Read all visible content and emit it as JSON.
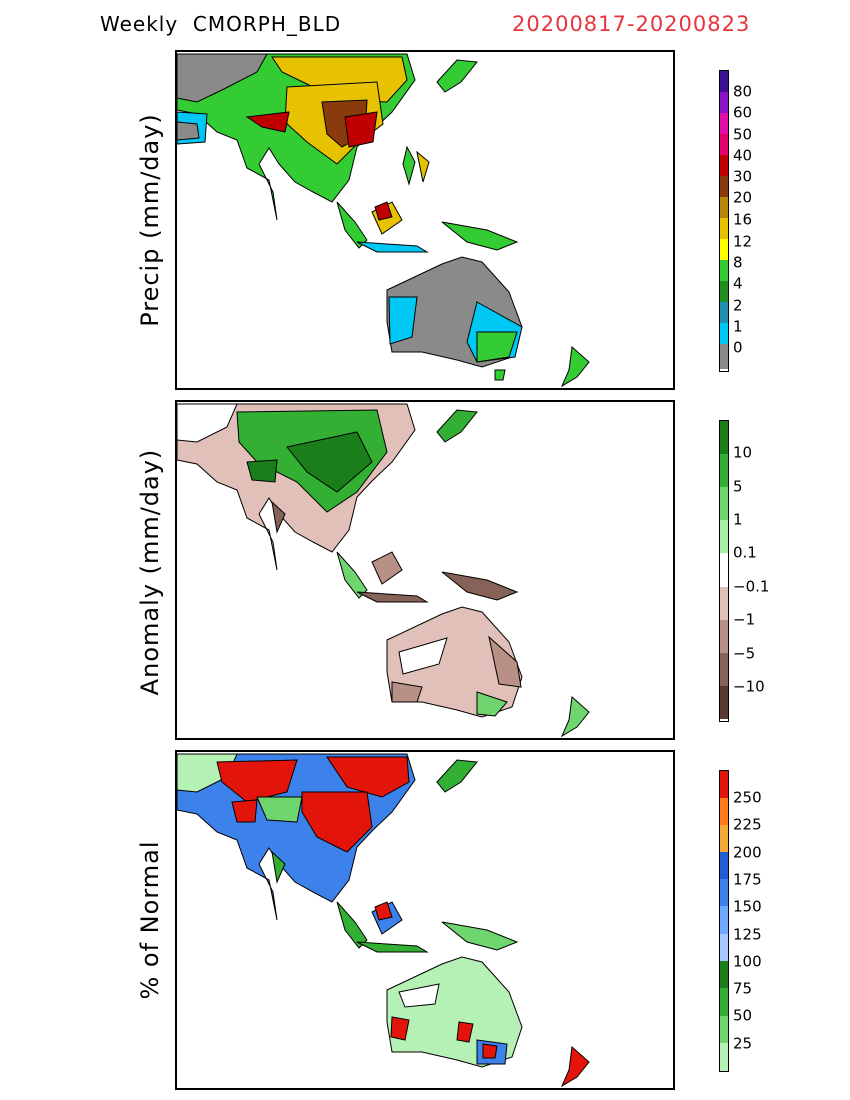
{
  "header": {
    "product": "Weekly  CMORPH_BLD",
    "period": "20200817-20200823",
    "period_color": "#e8343b"
  },
  "panels": [
    {
      "ylabel": "Precip  (mm/day)",
      "tick_labels": [
        "80",
        "60",
        "50",
        "40",
        "30",
        "20",
        "16",
        "12",
        "8",
        "4",
        "2",
        "1",
        "0"
      ],
      "colors": [
        "#3d0f94",
        "#8d11c8",
        "#e10fa5",
        "#e3006a",
        "#c00000",
        "#8a3b0b",
        "#b8860b",
        "#e6c200",
        "#ffff00",
        "#33cc33",
        "#1f8f1f",
        "#1f8fb3",
        "#00c8f5",
        "#8a8a8a"
      ]
    },
    {
      "ylabel": "Anomaly  (mm/day)",
      "tick_labels": [
        "10",
        "5",
        "1",
        "0.1",
        "−0.1",
        "−1",
        "−5",
        "−10"
      ],
      "colors": [
        "#1a7f1a",
        "#33b033",
        "#6fd66f",
        "#a8eea8",
        "#ffffff",
        "#e0c0b8",
        "#b89086",
        "#876258",
        "#5a3a33"
      ]
    },
    {
      "ylabel": "%  of  Normal",
      "tick_labels": [
        "250",
        "225",
        "200",
        "175",
        "150",
        "125",
        "100",
        "75",
        "50",
        "25"
      ],
      "colors": [
        "#e3140a",
        "#ff7b1a",
        "#f5a83a",
        "#1e5fd6",
        "#3c82ea",
        "#6fa8ff",
        "#a7c8ff",
        "#1a7f1a",
        "#33b033",
        "#6fd66f",
        "#b5f0b5"
      ]
    }
  ]
}
